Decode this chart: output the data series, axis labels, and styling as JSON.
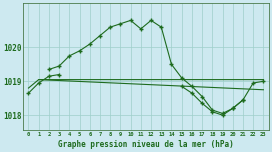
{
  "title": "Graphe pression niveau de la mer (hPa)",
  "background_color": "#cde9f0",
  "grid_color": "#9ecfca",
  "line_color": "#1e6b1e",
  "ylim": [
    1017.55,
    1021.3
  ],
  "yticks": [
    1018,
    1019,
    1020
  ],
  "curve_peak": {
    "x": [
      2,
      3,
      4,
      5,
      6,
      7,
      8,
      9,
      10,
      11,
      12,
      13,
      14,
      15,
      16,
      17,
      18,
      19,
      20,
      21
    ],
    "y": [
      1019.35,
      1019.45,
      1019.75,
      1019.9,
      1020.1,
      1020.35,
      1020.6,
      1020.7,
      1020.8,
      1020.55,
      1020.8,
      1020.6,
      1019.5,
      1019.1,
      1018.85,
      1018.55,
      1018.15,
      1018.05,
      1018.2,
      1018.45
    ]
  },
  "curve_low": {
    "x": [
      0,
      1,
      2,
      3,
      15,
      16,
      17,
      18,
      19,
      20,
      21,
      22,
      23
    ],
    "y": [
      1018.65,
      1018.95,
      1019.15,
      1019.2,
      1018.85,
      1018.65,
      1018.35,
      1018.1,
      1018.0,
      1018.2,
      1018.45,
      1018.95,
      1019.0
    ]
  },
  "curve_straight1": {
    "x": [
      0,
      1,
      23
    ],
    "y": [
      1018.8,
      1019.05,
      1019.05
    ]
  },
  "curve_straight2": {
    "x": [
      1,
      23
    ],
    "y": [
      1019.05,
      1018.75
    ]
  },
  "x_labels": [
    "0",
    "1",
    "2",
    "3",
    "4",
    "5",
    "6",
    "7",
    "8",
    "9",
    "10",
    "11",
    "12",
    "13",
    "14",
    "15",
    "16",
    "17",
    "18",
    "19",
    "20",
    "21",
    "22",
    "23"
  ],
  "title_fontsize": 5.5,
  "ytick_fontsize": 5.5,
  "xtick_fontsize": 4.0
}
